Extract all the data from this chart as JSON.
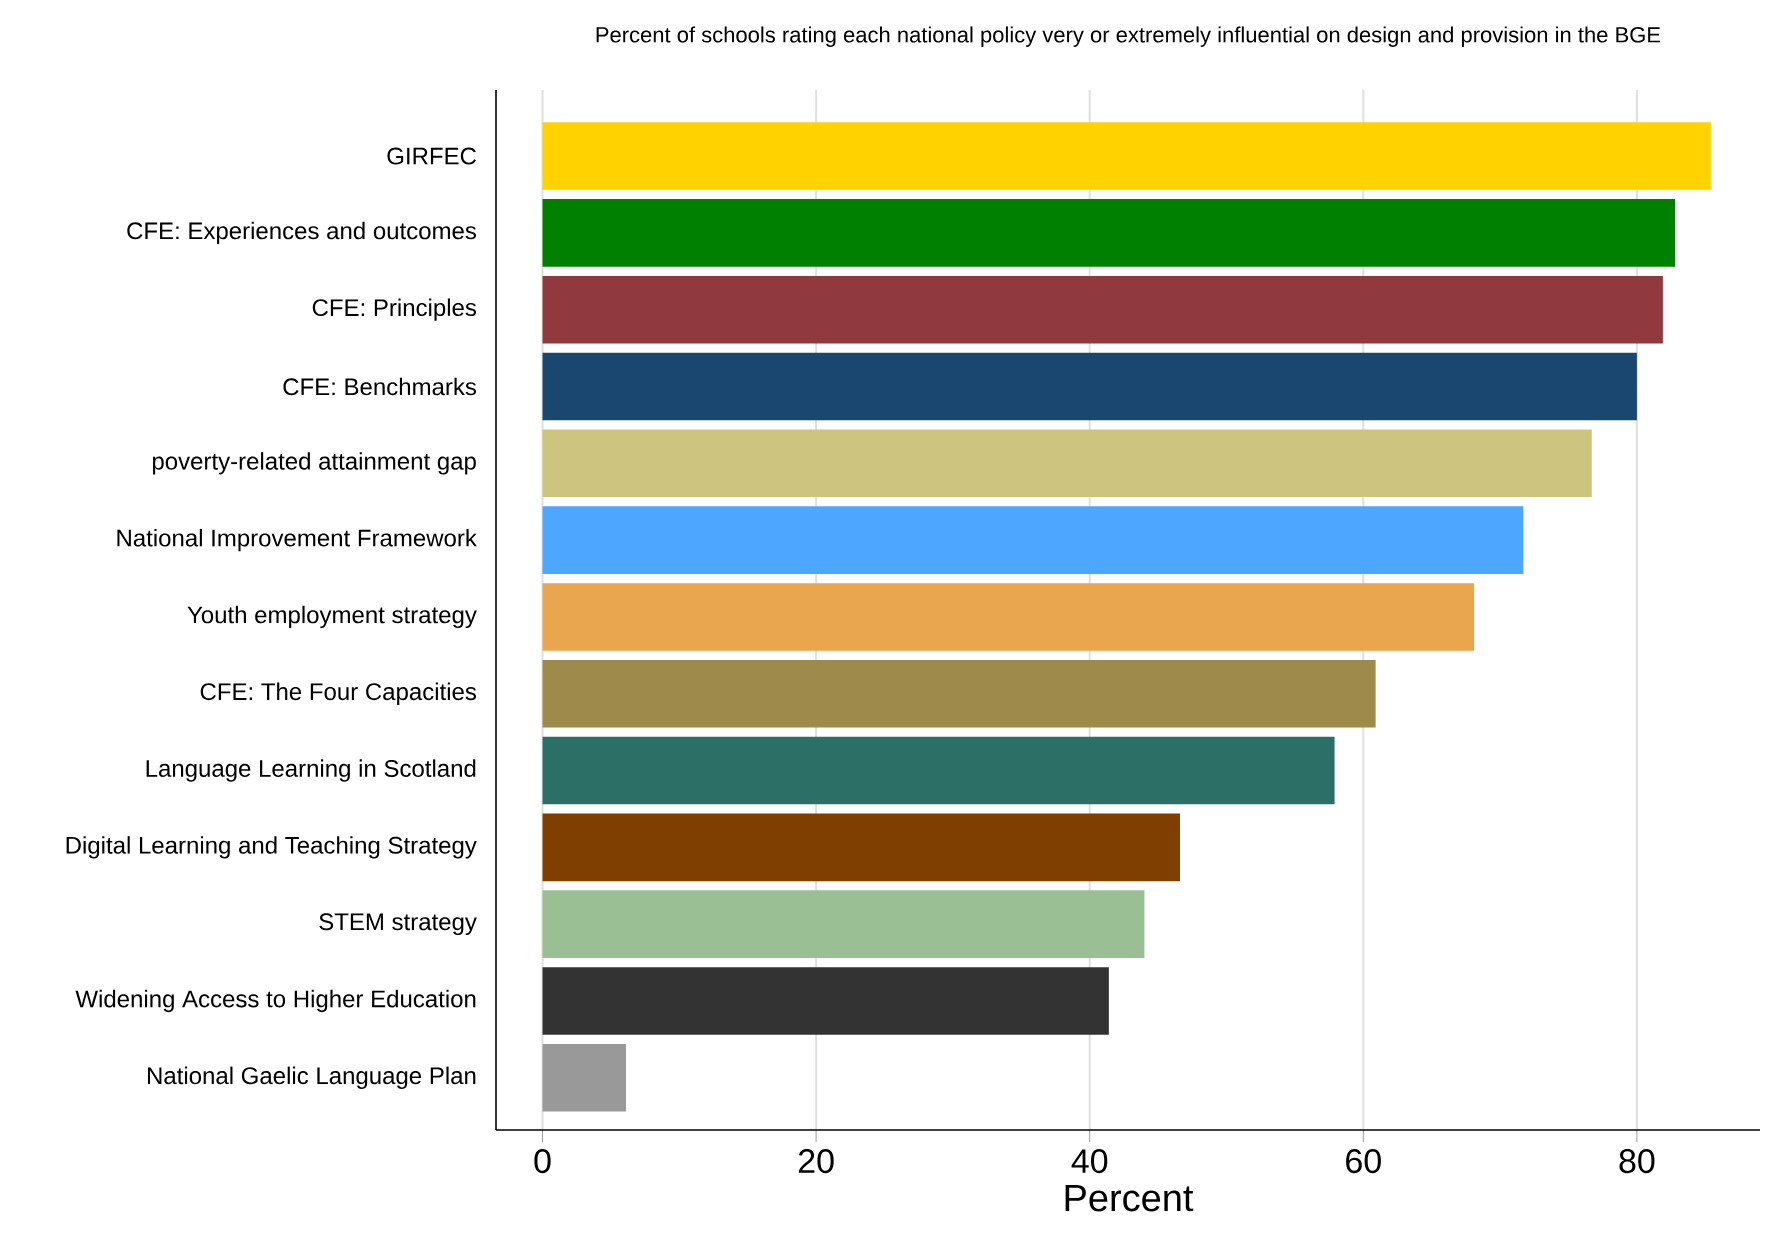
{
  "chart_data": {
    "type": "bar",
    "orientation": "horizontal",
    "title": "Percent of schools rating each national policy very or extremely influential  on design and provision in the BGE",
    "xlabel": "Percent",
    "categories": [
      "GIRFEC",
      "CFE: Experiences and outcomes",
      "CFE: Principles",
      "CFE: Benchmarks",
      "poverty-related attainment gap",
      "National Improvement Framework",
      "Youth employment strategy",
      "CFE: The Four Capacities",
      "Language Learning in Scotland",
      "Digital Learning and Teaching Strategy",
      "STEM strategy",
      "Widening Access to Higher Education",
      "National Gaelic Language Plan"
    ],
    "values": [
      85.4,
      82.8,
      81.9,
      80.0,
      76.7,
      71.7,
      68.1,
      60.9,
      57.9,
      46.6,
      44.0,
      41.4,
      6.1
    ],
    "colors": [
      "#ffd200",
      "#008000",
      "#903a40",
      "#1a476f",
      "#cdc47f",
      "#4da6ff",
      "#eaa54f",
      "#9e8a4a",
      "#2c6f66",
      "#7f3f00",
      "#9bbf94",
      "#333333",
      "#999999"
    ],
    "xlim": [
      -3.4,
      89
    ],
    "xticks": [
      0,
      20,
      40,
      60,
      80
    ],
    "grid": "x"
  }
}
